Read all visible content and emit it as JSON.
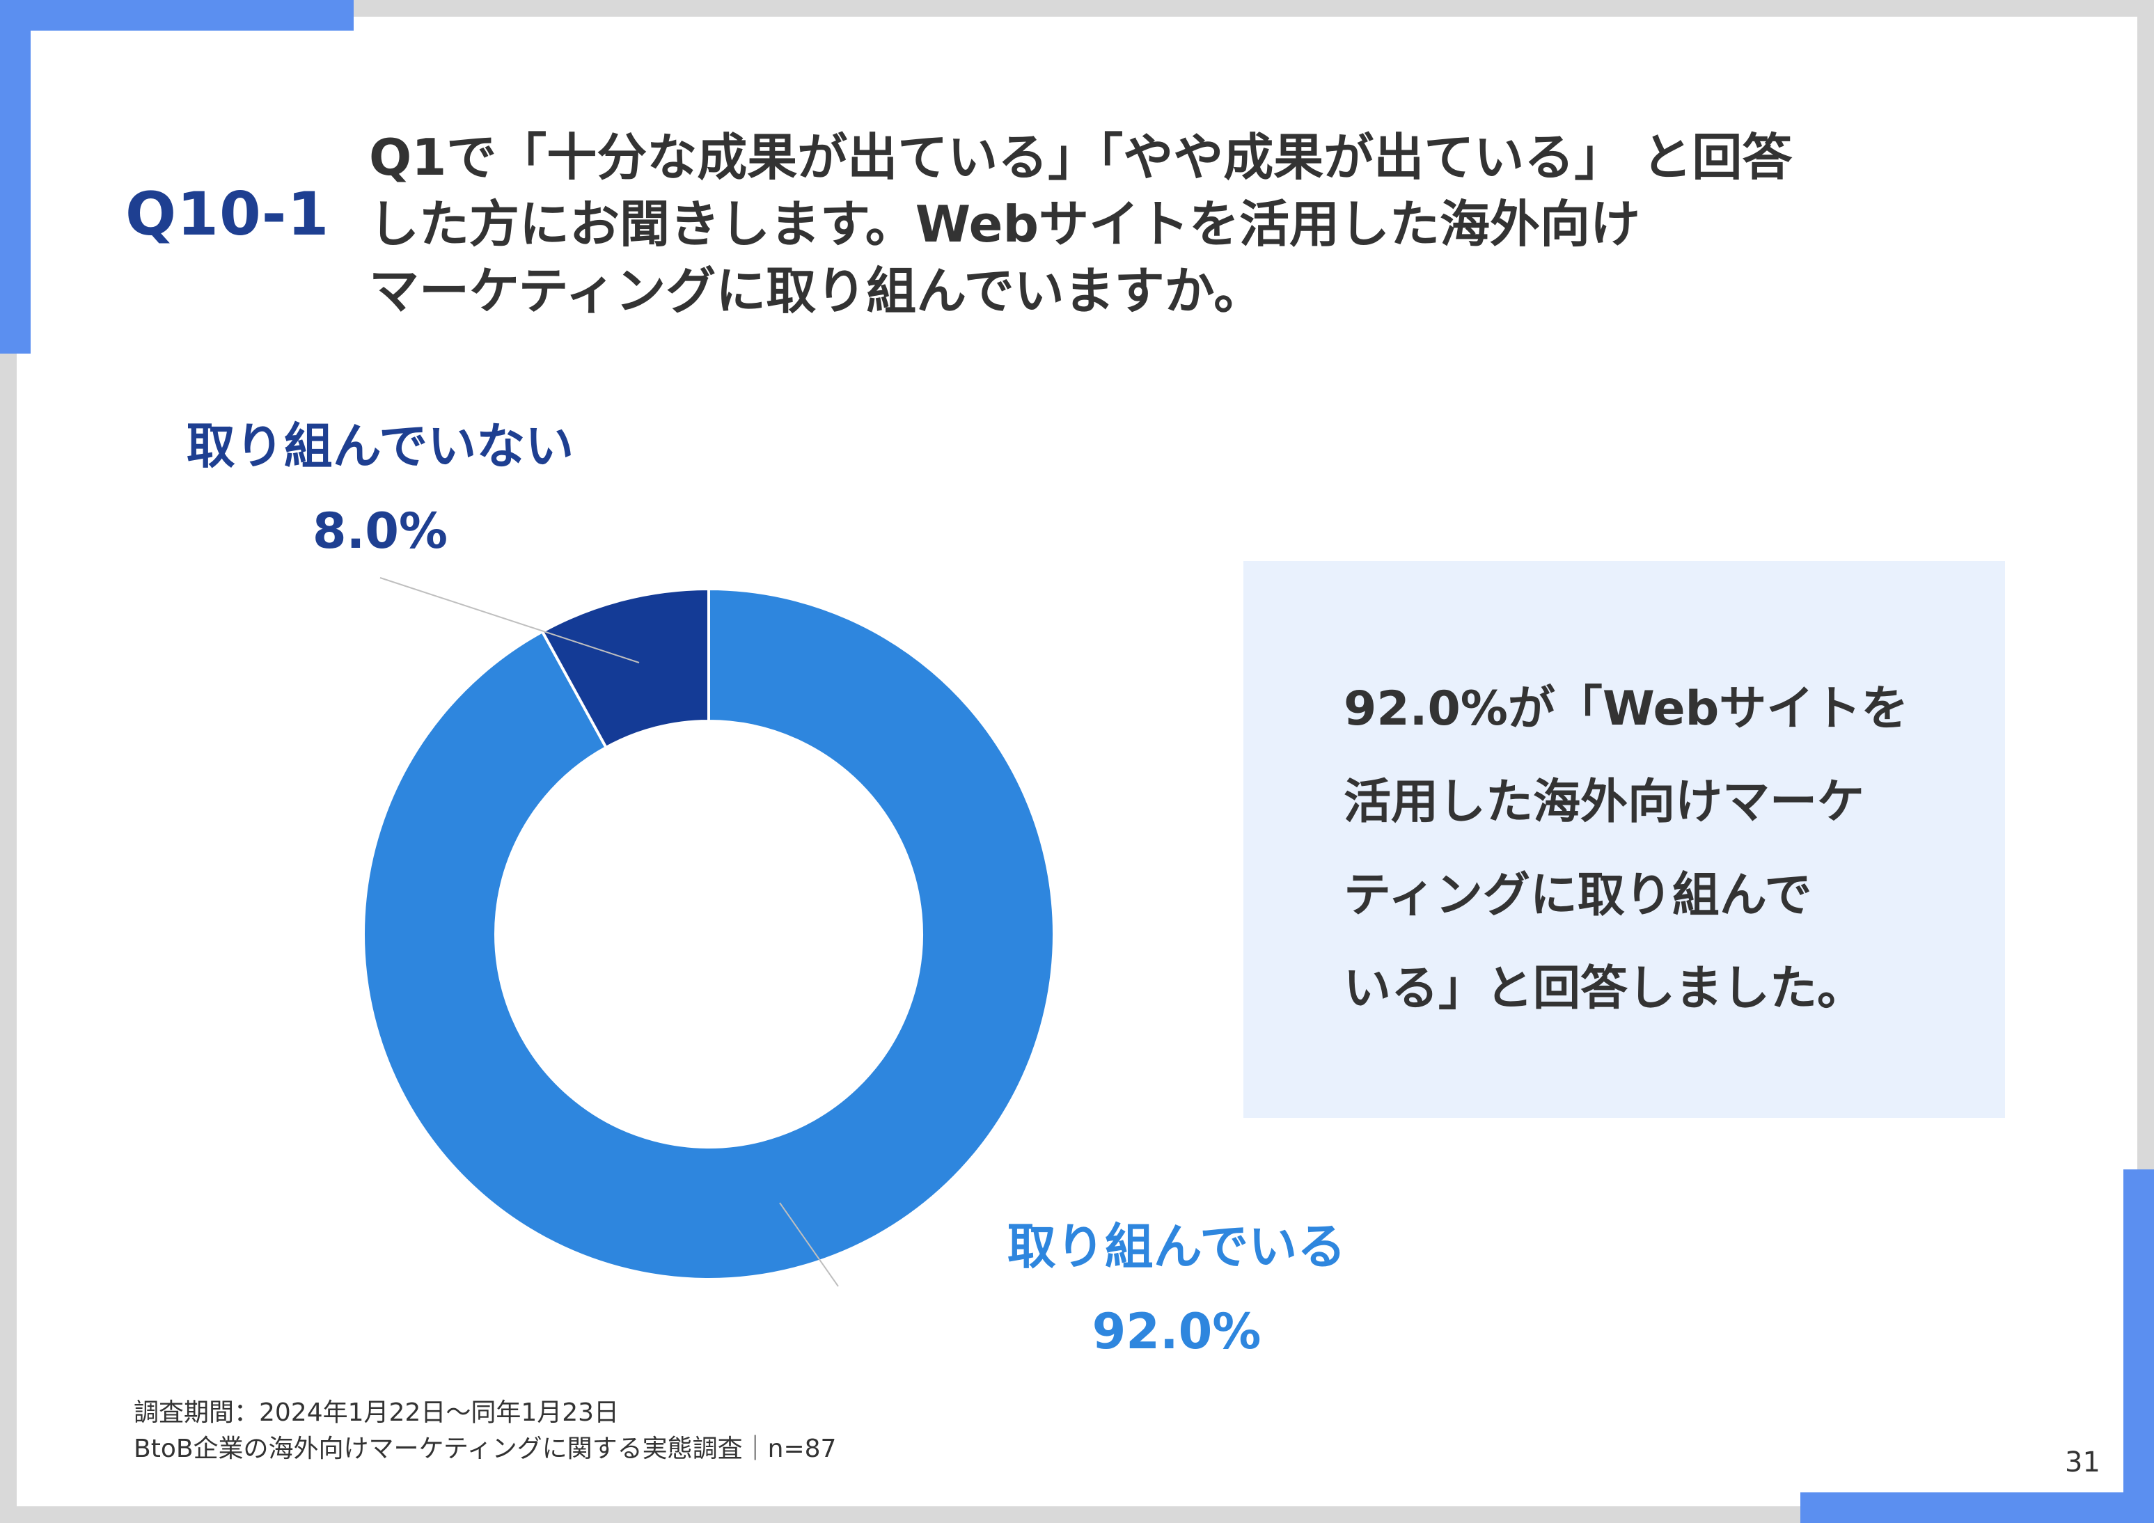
{
  "question": {
    "number": "Q10-1",
    "lines": [
      "Q1で「十分な成果が出ている」「やや成果が出ている」 と回答",
      "した方にお聞きします。Webサイトを活用した海外向け",
      "マーケティングに取り組んでいますか。"
    ]
  },
  "chart_data": {
    "type": "pie",
    "hole": "donut",
    "start_angle_deg": 0,
    "direction": "clockwise",
    "slices": [
      {
        "label": "取り組んでいる",
        "value": 92.0,
        "value_label": "92.0%",
        "color": "#2e86de"
      },
      {
        "label": "取り組んでいない",
        "value": 8.0,
        "value_label": "8.0%",
        "color": "#143b96"
      }
    ]
  },
  "summary": {
    "lines": [
      "92.0%が「Webサイトを",
      "活用した海外向けマーケ",
      "ティングに取り組んで",
      "いる」と回答しました。"
    ]
  },
  "footnote": {
    "lines": [
      "調査期間：2024年1月22日～同年1月23日",
      "BtoB企業の海外向けマーケティングに関する実態調査｜n=87"
    ]
  },
  "page_number": "31",
  "colors": {
    "accent": "#5b8ff0",
    "title": "#1e3f91",
    "summary_bg": "#e9f1fd"
  }
}
